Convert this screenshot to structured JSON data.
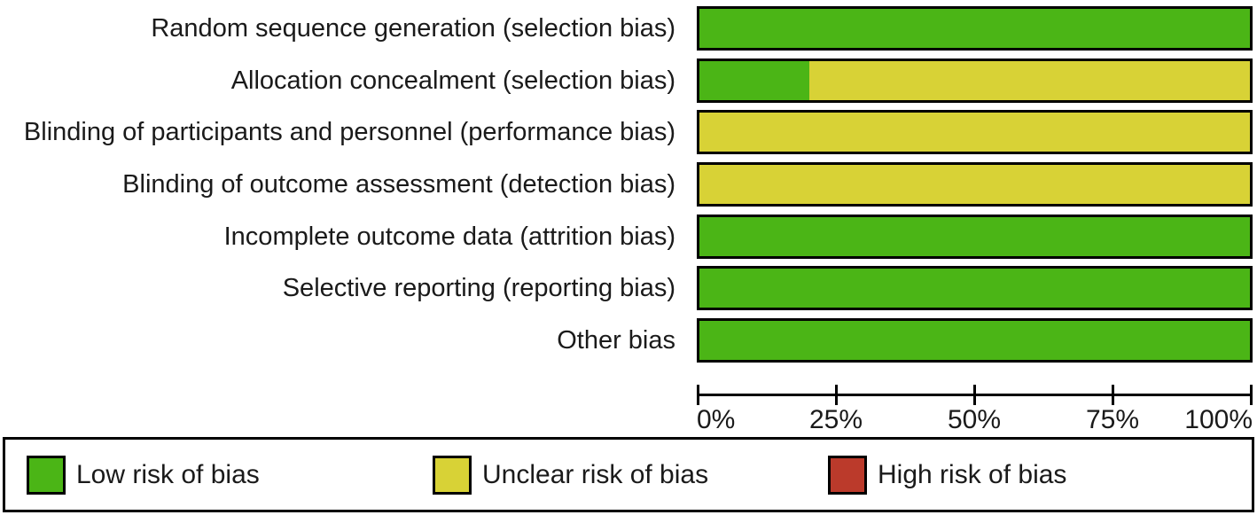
{
  "figure": {
    "description": "Risk of bias graph"
  },
  "chart_data": {
    "type": "bar",
    "orientation": "horizontal",
    "stacked": true,
    "unit": "percent",
    "title": "",
    "xlabel": "",
    "ylabel": "",
    "xlim": [
      0,
      100
    ],
    "grid": false,
    "legend_position": "bottom",
    "categories": [
      "Random sequence generation (selection bias)",
      "Allocation concealment (selection bias)",
      "Blinding of participants and personnel (performance bias)",
      "Blinding of outcome assessment (detection bias)",
      "Incomplete outcome data (attrition bias)",
      "Selective reporting (reporting bias)",
      "Other bias"
    ],
    "series": [
      {
        "name": "Low risk of bias",
        "key": "low",
        "color": "#4bb516",
        "values": [
          100,
          20,
          0,
          0,
          100,
          100,
          100
        ]
      },
      {
        "name": "Unclear risk of bias",
        "key": "unclear",
        "color": "#d8d236",
        "values": [
          0,
          80,
          100,
          100,
          0,
          0,
          0
        ]
      },
      {
        "name": "High risk of bias",
        "key": "high",
        "color": "#bb3a2b",
        "values": [
          0,
          0,
          0,
          0,
          0,
          0,
          0
        ]
      }
    ],
    "x_ticks": [
      "0%",
      "25%",
      "50%",
      "75%",
      "100%"
    ],
    "x_tick_values": [
      0,
      25,
      50,
      75,
      100
    ],
    "colors": {
      "bar_border": "#000000",
      "axis": "#000000",
      "text": "#1a1a1a",
      "background": "#ffffff"
    }
  }
}
